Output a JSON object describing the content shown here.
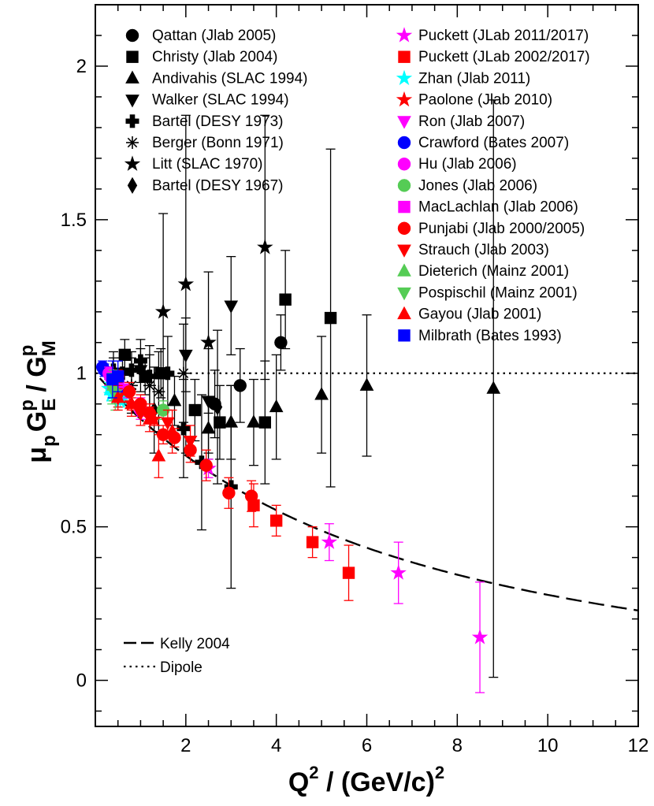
{
  "chart_data": {
    "type": "scatter",
    "xlabel": {
      "main": "Q",
      "sup": "2",
      "rest": " / (GeV/c)",
      "sup2": "2"
    },
    "ylabel": {
      "mu": "μ",
      "p_sub": "p",
      "G1": "G",
      "E_sub": "E",
      "p_sup1": "p",
      "slash": " / ",
      "G2": "G",
      "M_sub": "M",
      "p_sup2": "p"
    },
    "xlim": [
      0,
      12
    ],
    "ylim": [
      -0.15,
      2.2
    ],
    "x_ticks": [
      2,
      4,
      6,
      8,
      10,
      12
    ],
    "y_ticks": [
      0,
      0.5,
      1,
      1.5,
      2
    ],
    "x_tick_labels": [
      "2",
      "4",
      "6",
      "8",
      "10",
      "12"
    ],
    "y_tick_labels": [
      "0",
      "0.5",
      "1",
      "1.5",
      "2"
    ],
    "grid": false,
    "curves": [
      {
        "name": "Kelly 2004",
        "style": "dashed"
      },
      {
        "name": "Dipole",
        "style": "dotted",
        "value": 1.0
      }
    ],
    "series": [
      {
        "name": "Qattan (Jlab 2005)",
        "marker": "circle",
        "color": "#000000",
        "points": [
          [
            2.64,
            0.9,
            0.11
          ],
          [
            3.2,
            0.96,
            0.12
          ],
          [
            4.1,
            1.1,
            0.09
          ]
        ]
      },
      {
        "name": "Christy (Jlab 2004)",
        "marker": "square",
        "color": "#000000",
        "points": [
          [
            0.65,
            1.06,
            0.05
          ],
          [
            1.1,
            0.99,
            0.06
          ],
          [
            1.45,
            1.0,
            0.08
          ],
          [
            2.2,
            0.88,
            0.1
          ],
          [
            2.75,
            0.84,
            0.12
          ],
          [
            3.75,
            0.84,
            0.2
          ],
          [
            4.2,
            1.24,
            0.16
          ],
          [
            5.2,
            1.18,
            0.55
          ]
        ]
      },
      {
        "name": "Andivahis (SLAC 1994)",
        "marker": "triangle-up",
        "color": "#000000",
        "points": [
          [
            1.75,
            0.91,
            0.08
          ],
          [
            2.5,
            0.82,
            0.1
          ],
          [
            3.0,
            0.84,
            0.12
          ],
          [
            3.5,
            0.84,
            0.14
          ],
          [
            4.0,
            0.89,
            0.17
          ],
          [
            5.0,
            0.93,
            0.19
          ],
          [
            6.0,
            0.96,
            0.23
          ],
          [
            8.8,
            0.95,
            0.94
          ]
        ]
      },
      {
        "name": "Walker (SLAC 1994)",
        "marker": "triangle-down",
        "color": "#000000",
        "points": [
          [
            1.0,
            1.01,
            0.07
          ],
          [
            2.0,
            1.06,
            0.12
          ],
          [
            2.5,
            0.91,
            0.17
          ],
          [
            3.0,
            1.22,
            0.16
          ]
        ]
      },
      {
        "name": "Bartel (DESY 1973)",
        "marker": "plus",
        "color": "#000000",
        "points": [
          [
            0.4,
            1.01,
            0.04
          ],
          [
            0.6,
            1.0,
            0.05
          ],
          [
            0.8,
            1.01,
            0.06
          ],
          [
            1.0,
            1.04,
            0.07
          ],
          [
            1.2,
            0.99,
            0.1
          ],
          [
            1.6,
            1.0,
            0.12
          ],
          [
            1.95,
            0.82,
            0.16
          ],
          [
            2.35,
            0.71,
            0.22
          ],
          [
            3.0,
            0.63,
            0.33
          ]
        ]
      },
      {
        "name": "Berger (Bonn 1971)",
        "marker": "asterisk",
        "color": "#000000",
        "points": [
          [
            0.4,
            0.99,
            0.08
          ],
          [
            0.8,
            0.96,
            0.09
          ],
          [
            1.2,
            0.96,
            0.1
          ],
          [
            1.4,
            0.94,
            0.13
          ],
          [
            1.95,
            1.0,
            0.16
          ]
        ]
      },
      {
        "name": "Litt (SLAC 1970)",
        "marker": "star",
        "color": "#000000",
        "points": [
          [
            1.5,
            1.2,
            0.32
          ],
          [
            2.0,
            1.29,
            0.55
          ],
          [
            2.5,
            1.1,
            0.23
          ],
          [
            3.75,
            1.41,
            0.43
          ]
        ]
      },
      {
        "name": "Bartel (DESY 1967)",
        "marker": "diamond",
        "color": "#000000",
        "points": [
          [
            1.3,
            0.88,
            0.14
          ],
          [
            2.7,
            0.89,
            0.25
          ]
        ]
      },
      {
        "name": "Puckett (JLab 2011/2017)",
        "marker": "star",
        "color": "#ff00ff",
        "points": [
          [
            2.5,
            0.69,
            0.03
          ],
          [
            5.17,
            0.45,
            0.06
          ],
          [
            6.7,
            0.35,
            0.1
          ],
          [
            8.5,
            0.14,
            0.18
          ]
        ]
      },
      {
        "name": "Puckett (JLab 2002/2017)",
        "marker": "square",
        "color": "#ff0000",
        "points": [
          [
            3.5,
            0.57,
            0.07
          ],
          [
            4.0,
            0.52,
            0.05
          ],
          [
            4.8,
            0.45,
            0.05
          ],
          [
            5.6,
            0.35,
            0.09
          ]
        ]
      },
      {
        "name": "Zhan (Jlab 2011)",
        "marker": "star",
        "color": "#00ffff",
        "points": [
          [
            0.3,
            0.95,
            0.02
          ],
          [
            0.35,
            0.93,
            0.02
          ],
          [
            0.45,
            0.94,
            0.02
          ],
          [
            0.5,
            0.92,
            0.02
          ],
          [
            0.55,
            0.91,
            0.02
          ],
          [
            0.6,
            0.92,
            0.02
          ],
          [
            0.7,
            0.93,
            0.02
          ]
        ]
      },
      {
        "name": "Paolone (Jlab 2010)",
        "marker": "star",
        "color": "#ff0000",
        "points": [
          [
            0.8,
            0.9,
            0.02
          ],
          [
            1.3,
            0.85,
            0.02
          ]
        ]
      },
      {
        "name": "Ron (Jlab 2007)",
        "marker": "triangle-down",
        "color": "#ff00ff",
        "points": [
          [
            0.3,
            0.98,
            0.02
          ],
          [
            0.35,
            0.97,
            0.02
          ],
          [
            0.4,
            0.97,
            0.02
          ],
          [
            0.45,
            0.96,
            0.02
          ],
          [
            0.5,
            0.96,
            0.02
          ],
          [
            0.6,
            0.95,
            0.02
          ],
          [
            0.7,
            0.94,
            0.02
          ]
        ]
      },
      {
        "name": "Crawford (Bates 2007)",
        "marker": "circle",
        "color": "#0000ff",
        "points": [
          [
            0.16,
            1.02,
            0.02
          ],
          [
            0.2,
            1.01,
            0.02
          ],
          [
            0.3,
            1.0,
            0.02
          ],
          [
            0.4,
            0.97,
            0.02
          ],
          [
            0.5,
            0.95,
            0.02
          ]
        ]
      },
      {
        "name": "Hu (Jlab 2006)",
        "marker": "circle",
        "color": "#ff00ff",
        "points": [
          [
            0.3,
            1.0,
            0.02
          ],
          [
            0.4,
            0.98,
            0.02
          ],
          [
            0.5,
            0.96,
            0.02
          ],
          [
            1.0,
            0.88,
            0.03
          ]
        ]
      },
      {
        "name": "Jones (Jlab 2006)",
        "marker": "circle",
        "color": "#55cc55",
        "points": [
          [
            1.5,
            0.88,
            0.03
          ]
        ]
      },
      {
        "name": "MacLachlan (Jlab 2006)",
        "marker": "square",
        "color": "#ff00ff",
        "points": [
          [
            0.5,
            0.97,
            0.03
          ],
          [
            1.0,
            0.89,
            0.03
          ]
        ]
      },
      {
        "name": "Punjabi (Jlab 2000/2005)",
        "marker": "circle",
        "color": "#ff0000",
        "points": [
          [
            0.5,
            0.99,
            0.02
          ],
          [
            0.75,
            0.94,
            0.03
          ],
          [
            1.0,
            0.9,
            0.03
          ],
          [
            1.2,
            0.87,
            0.03
          ],
          [
            1.5,
            0.8,
            0.03
          ],
          [
            1.75,
            0.79,
            0.03
          ],
          [
            2.1,
            0.75,
            0.04
          ],
          [
            2.45,
            0.7,
            0.05
          ],
          [
            2.95,
            0.61,
            0.05
          ],
          [
            3.45,
            0.6,
            0.05
          ]
        ]
      },
      {
        "name": "Strauch (Jlab 2003)",
        "marker": "triangle-down",
        "color": "#ff0000",
        "points": [
          [
            0.5,
            0.92,
            0.03
          ],
          [
            1.0,
            0.87,
            0.04
          ],
          [
            1.6,
            0.84,
            0.04
          ],
          [
            2.1,
            0.78,
            0.05
          ]
        ]
      },
      {
        "name": "Dieterich (Mainz 2001)",
        "marker": "triangle-up",
        "color": "#55cc55",
        "points": [
          [
            0.4,
            0.96,
            0.05
          ]
        ]
      },
      {
        "name": "Pospischil (Mainz 2001)",
        "marker": "triangle-down",
        "color": "#55cc55",
        "points": [
          [
            0.37,
            0.95,
            0.05
          ],
          [
            0.44,
            0.93,
            0.05
          ]
        ]
      },
      {
        "name": "Gayou (Jlab 2001)",
        "marker": "triangle-up",
        "color": "#ff0000",
        "points": [
          [
            0.5,
            0.92,
            0.04
          ],
          [
            0.8,
            0.9,
            0.04
          ],
          [
            1.2,
            0.85,
            0.04
          ],
          [
            1.4,
            0.73,
            0.07
          ],
          [
            1.7,
            0.81,
            0.07
          ]
        ]
      },
      {
        "name": "Milbrath (Bates 1993)",
        "marker": "square",
        "color": "#0000ff",
        "points": [
          [
            0.38,
            0.98,
            0.06
          ],
          [
            0.5,
            0.99,
            0.05
          ]
        ]
      }
    ]
  }
}
